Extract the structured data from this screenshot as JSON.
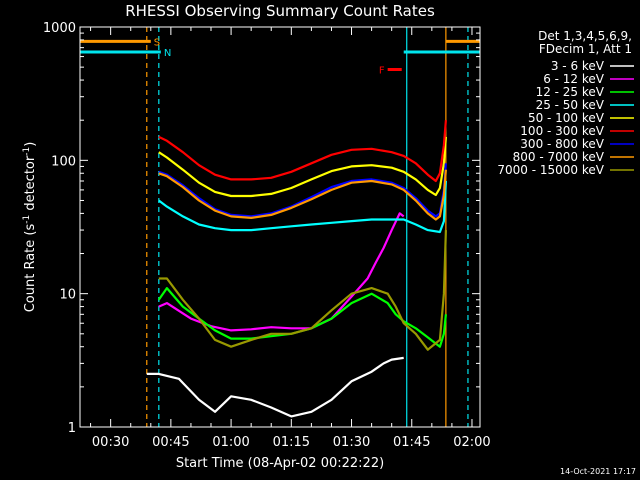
{
  "chart_data": {
    "type": "line",
    "title": "RHESSI Observing Summary Count Rates",
    "xlabel": "Start Time (08-Apr-02 00:22:22)",
    "ylabel": "Count Rate (s⁻¹ detector⁻¹)",
    "ylabel_main": "Count Rate (s",
    "ylabel_exp": "-1",
    "ylabel_mid": " detector",
    "ylabel_exp2": "-1",
    "ylabel_end": ")",
    "ylog": true,
    "ylim": [
      1,
      1000
    ],
    "xlim": [
      "00:22:22",
      "02:02:00"
    ],
    "x_ticks": [
      "00:30",
      "00:45",
      "01:00",
      "01:15",
      "01:30",
      "01:45",
      "02:00"
    ],
    "y_ticks": [
      "1",
      "10",
      "100",
      "1000"
    ],
    "legend_header": [
      "Det 1,3,4,5,6,9,",
      "FDecim 1, Att 1"
    ],
    "legend_position": "top-right",
    "footer_date": "14-Oct-2021 17:17",
    "flags": [
      {
        "label": "S",
        "color": "#ff9900",
        "y": 780,
        "segments": [
          [
            "00:22:22",
            "00:40:00"
          ],
          [
            "01:53:30",
            "02:02:00"
          ]
        ]
      },
      {
        "label": "N",
        "color": "#00e5ee",
        "y": 650,
        "segments": [
          [
            "00:22:22",
            "00:42:30"
          ],
          [
            "01:43:00",
            "02:02:00"
          ]
        ]
      },
      {
        "label": "F",
        "color": "#ff0000",
        "y": 480,
        "segments": [
          [
            "01:39:00",
            "01:42:30"
          ]
        ]
      }
    ],
    "vlines": [
      {
        "t": "00:39:00",
        "color": "#ff9900",
        "style": "dashed"
      },
      {
        "t": "00:42:00",
        "color": "#00e5ee",
        "style": "dashed"
      },
      {
        "t": "01:43:45",
        "color": "#00e5ee",
        "style": "solid"
      },
      {
        "t": "01:53:30",
        "color": "#ff9900",
        "style": "solid"
      },
      {
        "t": "01:59:00",
        "color": "#00e5ee",
        "style": "dashed"
      }
    ],
    "series": [
      {
        "name": "3 - 6 keV",
        "color": "#ffffff",
        "t": [
          "00:39:00",
          "00:42:00",
          "00:47:00",
          "00:52:00",
          "00:56:00",
          "01:00:00",
          "01:05:00",
          "01:10:00",
          "01:15:00",
          "01:20:00",
          "01:25:00",
          "01:30:00",
          "01:35:00",
          "01:38:00",
          "01:40:00",
          "01:43:00"
        ],
        "values": [
          2.5,
          2.5,
          2.3,
          1.6,
          1.3,
          1.7,
          1.6,
          1.4,
          1.2,
          1.3,
          1.6,
          2.2,
          2.6,
          3.0,
          3.2,
          3.3
        ]
      },
      {
        "name": "6 - 12 keV",
        "color": "#ff00ff",
        "t": [
          "00:42:00",
          "00:44:00",
          "00:50:00",
          "00:55:00",
          "01:00:00",
          "01:05:00",
          "01:10:00",
          "01:15:00",
          "01:20:00",
          "01:25:00",
          "01:30:00",
          "01:34:00",
          "01:36:00",
          "01:38:00",
          "01:40:00",
          "01:42:00",
          "01:43:00"
        ],
        "values": [
          8,
          8.5,
          6.5,
          5.7,
          5.3,
          5.4,
          5.6,
          5.5,
          5.5,
          6.5,
          9.5,
          13,
          17,
          22,
          30,
          40,
          38
        ]
      },
      {
        "name": "12 - 25 keV",
        "color": "#00ff00",
        "t": [
          "00:42:00",
          "00:44:00",
          "00:48:00",
          "00:52:00",
          "00:56:00",
          "01:00:00",
          "01:05:00",
          "01:10:00",
          "01:15:00",
          "01:20:00",
          "01:25:00",
          "01:30:00",
          "01:35:00",
          "01:39:00",
          "01:41:00",
          "01:43:00",
          "01:46:00",
          "01:49:00",
          "01:52:00",
          "01:53:00",
          "01:53:30"
        ],
        "values": [
          9,
          11,
          8,
          6.5,
          5.3,
          4.6,
          4.6,
          4.8,
          5.0,
          5.5,
          6.5,
          8.5,
          10,
          8.5,
          7,
          6.2,
          5.5,
          4.7,
          4.0,
          5,
          7
        ]
      },
      {
        "name": "25 - 50 keV",
        "color": "#00ffff",
        "t": [
          "00:42:00",
          "00:44:00",
          "00:48:00",
          "00:52:00",
          "00:56:00",
          "01:00:00",
          "01:05:00",
          "01:10:00",
          "01:15:00",
          "01:20:00",
          "01:25:00",
          "01:30:00",
          "01:35:00",
          "01:40:00",
          "01:43:00",
          "01:46:00",
          "01:49:00",
          "01:52:00",
          "01:53:00",
          "01:53:30"
        ],
        "values": [
          50,
          45,
          38,
          33,
          31,
          30,
          30,
          31,
          32,
          33,
          34,
          35,
          36,
          36,
          36,
          33,
          30,
          29,
          35,
          70
        ]
      },
      {
        "name": "50 - 100 keV",
        "color": "#ffff00",
        "t": [
          "00:42:00",
          "00:44:00",
          "00:48:00",
          "00:52:00",
          "00:56:00",
          "01:00:00",
          "01:05:00",
          "01:10:00",
          "01:15:00",
          "01:20:00",
          "01:25:00",
          "01:30:00",
          "01:35:00",
          "01:40:00",
          "01:43:00",
          "01:46:00",
          "01:49:00",
          "01:51:00",
          "01:52:00",
          "01:53:00",
          "01:53:30"
        ],
        "values": [
          115,
          105,
          85,
          68,
          58,
          54,
          54,
          56,
          62,
          72,
          83,
          90,
          92,
          88,
          82,
          72,
          60,
          55,
          62,
          95,
          150
        ]
      },
      {
        "name": "100 - 300 keV",
        "color": "#ff0000",
        "t": [
          "00:42:00",
          "00:44:00",
          "00:48:00",
          "00:52:00",
          "00:56:00",
          "01:00:00",
          "01:05:00",
          "01:10:00",
          "01:15:00",
          "01:20:00",
          "01:25:00",
          "01:30:00",
          "01:35:00",
          "01:40:00",
          "01:43:00",
          "01:46:00",
          "01:49:00",
          "01:51:00",
          "01:52:00",
          "01:53:00",
          "01:53:30"
        ],
        "values": [
          150,
          140,
          115,
          92,
          78,
          72,
          72,
          74,
          82,
          95,
          110,
          120,
          122,
          115,
          108,
          95,
          78,
          70,
          80,
          130,
          200
        ]
      },
      {
        "name": "300 - 800 keV",
        "color": "#0000ff",
        "t": [
          "00:42:00",
          "00:44:00",
          "00:48:00",
          "00:52:00",
          "00:56:00",
          "01:00:00",
          "01:05:00",
          "01:10:00",
          "01:15:00",
          "01:20:00",
          "01:25:00",
          "01:30:00",
          "01:35:00",
          "01:40:00",
          "01:43:00",
          "01:46:00",
          "01:49:00",
          "01:51:00",
          "01:52:00",
          "01:53:00",
          "01:53:30"
        ],
        "values": [
          82,
          78,
          65,
          52,
          43,
          39,
          38,
          40,
          45,
          53,
          63,
          70,
          72,
          68,
          62,
          52,
          42,
          38,
          40,
          60,
          95
        ]
      },
      {
        "name": "800 - 7000 keV",
        "color": "#ff9900",
        "t": [
          "00:42:00",
          "00:44:00",
          "00:48:00",
          "00:52:00",
          "00:56:00",
          "01:00:00",
          "01:05:00",
          "01:10:00",
          "01:15:00",
          "01:20:00",
          "01:25:00",
          "01:30:00",
          "01:35:00",
          "01:40:00",
          "01:43:00",
          "01:46:00",
          "01:49:00",
          "01:51:00",
          "01:52:00",
          "01:53:00",
          "01:53:30"
        ],
        "values": [
          80,
          76,
          63,
          50,
          42,
          38,
          37,
          39,
          44,
          51,
          60,
          68,
          70,
          66,
          60,
          50,
          40,
          36,
          38,
          55,
          85
        ]
      },
      {
        "name": "7000 - 15000 keV",
        "color": "#999900",
        "t": [
          "00:42:00",
          "00:44:00",
          "00:48:00",
          "00:52:00",
          "00:56:00",
          "01:00:00",
          "01:05:00",
          "01:10:00",
          "01:15:00",
          "01:20:00",
          "01:25:00",
          "01:30:00",
          "01:35:00",
          "01:39:00",
          "01:41:00",
          "01:43:00",
          "01:46:00",
          "01:49:00",
          "01:52:00",
          "01:53:00",
          "01:53:30"
        ],
        "values": [
          13,
          13,
          9,
          6.5,
          4.5,
          4.0,
          4.5,
          5.0,
          5.0,
          5.5,
          7.5,
          10,
          11,
          10,
          8,
          6,
          5,
          3.8,
          4.5,
          10,
          30
        ]
      }
    ]
  }
}
